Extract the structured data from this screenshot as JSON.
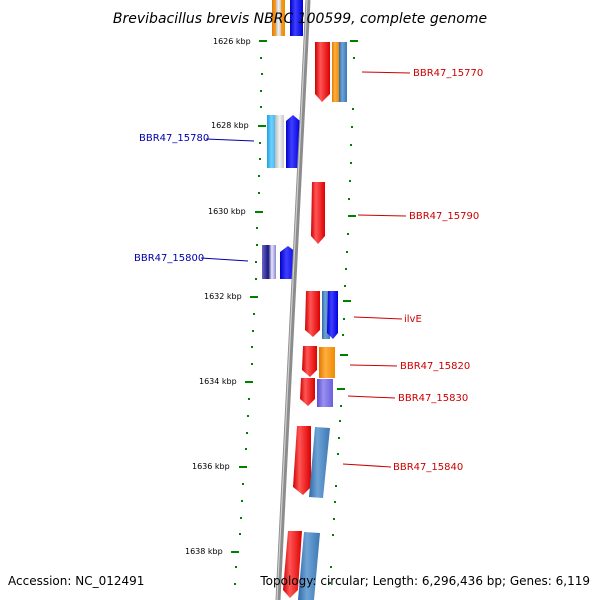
{
  "title": "Brevibacillus brevis NBRC 100599, complete genome",
  "footer": {
    "accession": "Accession: NC_012491",
    "topology": "Topology: circular; Length: 6,296,436 bp; Genes: 6,119"
  },
  "ticks": [
    "1626 kbp",
    "1628 kbp",
    "1630 kbp",
    "1632 kbp",
    "1634 kbp",
    "1636 kbp",
    "1638 kbp"
  ],
  "gene_labels_left": [
    "BBR47_15780",
    "BBR47_15800"
  ],
  "gene_labels_right": [
    "BBR47_15770",
    "BBR47_15790",
    "ilvE",
    "BBR47_15820",
    "BBR47_15830",
    "BBR47_15840"
  ],
  "colors": {
    "forward_strand": "#ff0000",
    "reverse_strand": "#0000ff",
    "label_right": "#cc0000",
    "label_left": "#0000aa",
    "tick_mark": "#008000",
    "backbone": "#999999"
  }
}
